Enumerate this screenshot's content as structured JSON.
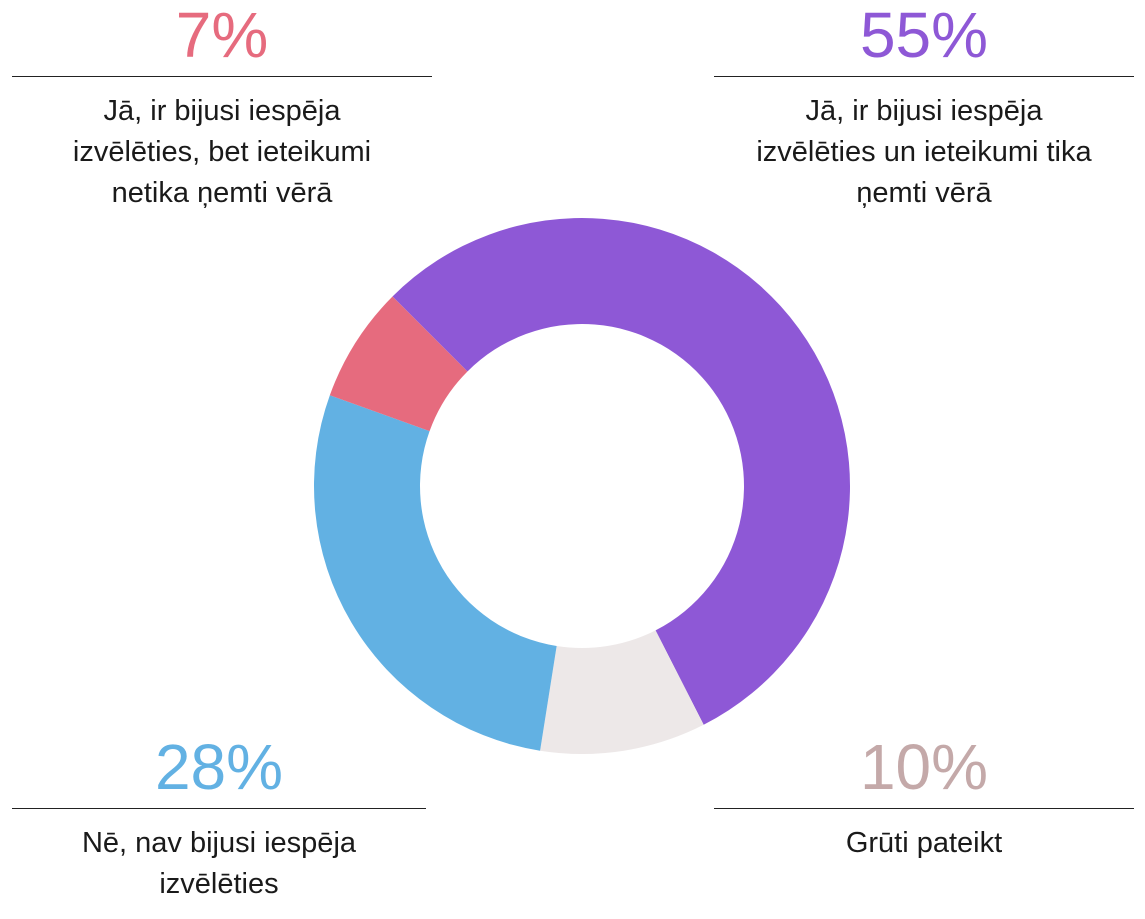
{
  "chart_data": {
    "type": "donut",
    "categories": [
      "Jā, ir bijusi iespēja izvēlēties un ieteikumi tika ņemti vērā",
      "Grūti pateikt",
      "Nē, nav bijusi iespēja izvēlēties",
      "Jā, ir bijusi iespēja izvēlēties, bet ieteikumi netika ņemti vērā"
    ],
    "values": [
      55,
      10,
      28,
      7
    ],
    "value_labels": [
      "55%",
      "10%",
      "28%",
      "7%"
    ],
    "colors": [
      "#8e58d6",
      "#ede8e8",
      "#62b1e3",
      "#e66b7e"
    ],
    "label_colors": [
      "#8e58d6",
      "#c4a9a9",
      "#62b1e3",
      "#e66b7e"
    ]
  }
}
